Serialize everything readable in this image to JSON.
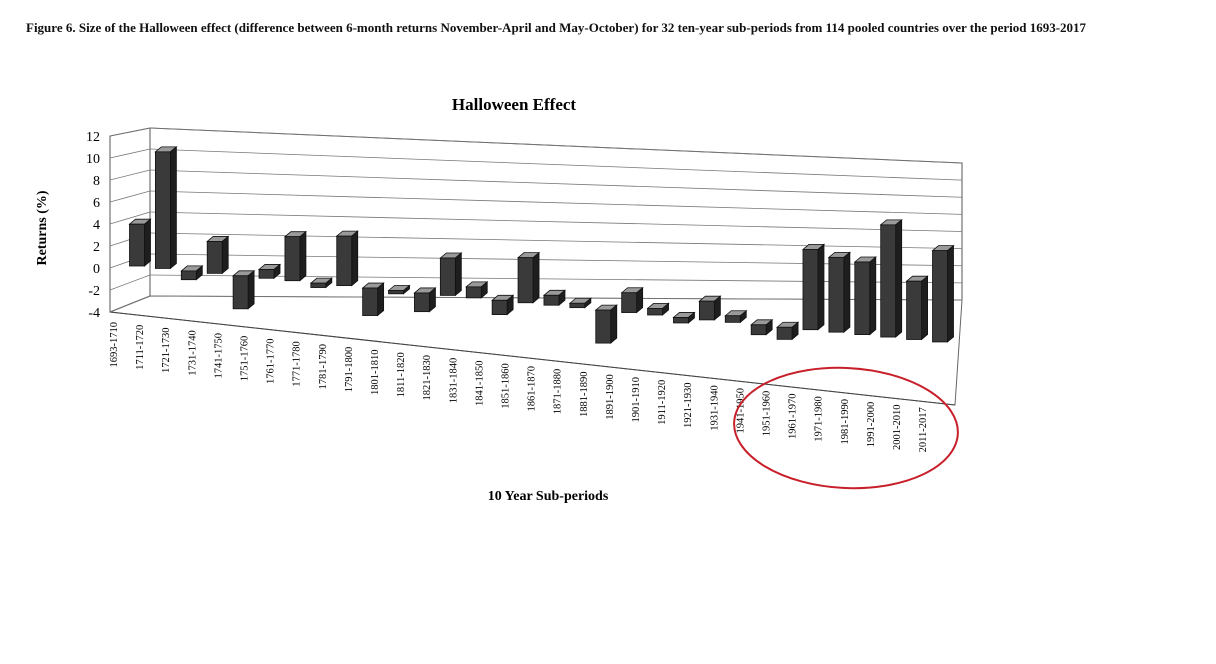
{
  "caption": "Figure 6. Size of the Halloween effect (difference between 6-month returns November-April and May-October) for 32 ten-year sub-periods from 114 pooled countries over the period 1693-2017",
  "chart_data": {
    "type": "bar",
    "title": "Halloween Effect",
    "xlabel": "10 Year Sub-periods",
    "ylabel": "Returns (%)",
    "ylim": [
      -4,
      12
    ],
    "yticks": [
      -4,
      -2,
      0,
      2,
      4,
      6,
      8,
      10,
      12
    ],
    "grid": true,
    "style": "3d",
    "categories": [
      "1693-1710",
      "1711-1720",
      "1721-1730",
      "1731-1740",
      "1741-1750",
      "1751-1760",
      "1761-1770",
      "1771-1780",
      "1781-1790",
      "1791-1800",
      "1801-1810",
      "1811-1820",
      "1821-1830",
      "1831-1840",
      "1841-1850",
      "1851-1860",
      "1861-1870",
      "1871-1880",
      "1881-1890",
      "1891-1900",
      "1901-1910",
      "1911-1920",
      "1921-1930",
      "1931-1940",
      "1941-1950",
      "1951-1960",
      "1961-1970",
      "1971-1980",
      "1981-1990",
      "1991-2000",
      "2001-2010",
      "2011-2017"
    ],
    "values": [
      3.8,
      10.6,
      -0.8,
      2.9,
      -3.0,
      0.8,
      4.0,
      -0.4,
      4.5,
      -2.5,
      -0.3,
      -1.7,
      3.4,
      1.0,
      -1.3,
      4.1,
      0.9,
      0.4,
      -3.0,
      1.8,
      0.6,
      -0.5,
      1.7,
      0.6,
      -0.9,
      -1.1,
      7.3,
      6.8,
      6.6,
      10.2,
      5.3,
      8.3
    ],
    "bar_color": "#3a3a3a",
    "highlight": {
      "shape": "ellipse",
      "color": "#c8202a",
      "categories": [
        "1961-1970",
        "1971-1980",
        "1981-1990",
        "1991-2000",
        "2001-2010",
        "2011-2017"
      ]
    }
  }
}
